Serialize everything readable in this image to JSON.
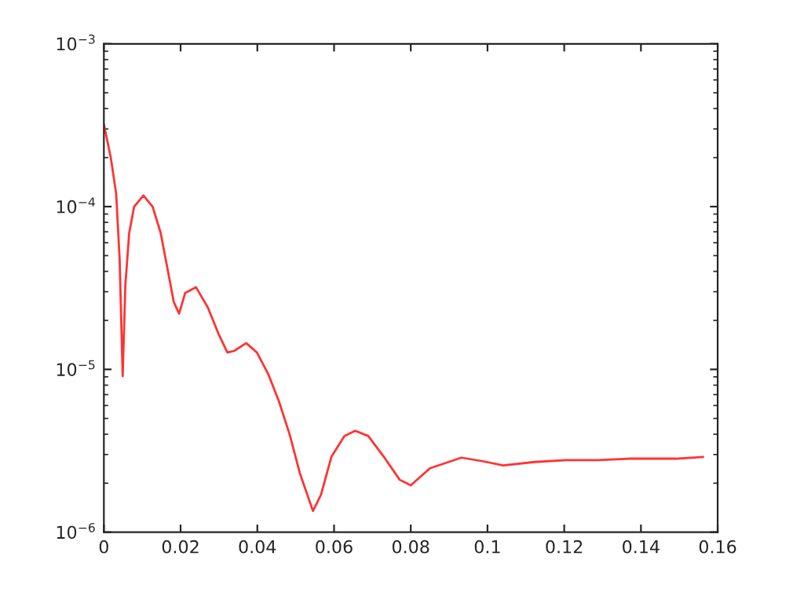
{
  "chart_data": {
    "type": "line",
    "log": "y",
    "grid": false,
    "marker": "none",
    "line_style": "solid",
    "xlim": [
      0,
      0.16
    ],
    "xticks": [
      0,
      0.02,
      0.04,
      0.06,
      0.08,
      0.1,
      0.12,
      0.14,
      0.16
    ],
    "ylim": [
      1e-06,
      0.001
    ],
    "yticks": [
      {
        "value": 1e-06,
        "label": "10$^{−6}$"
      },
      {
        "value": 1e-05,
        "label": "10$^{−5}$"
      },
      {
        "value": 0.0001,
        "label": "10$^{−4}$"
      },
      {
        "value": 0.001,
        "label": "10$^{−3}$"
      }
    ],
    "series": [
      {
        "color": "#ff3333",
        "x": [
          0,
          0.0018,
          0.0032,
          0.0041,
          0.0049,
          0.0056,
          0.0066,
          0.0079,
          0.0103,
          0.0127,
          0.0148,
          0.0168,
          0.0182,
          0.0196,
          0.0212,
          0.024,
          0.0271,
          0.0299,
          0.0322,
          0.034,
          0.0371,
          0.0399,
          0.0429,
          0.0456,
          0.0484,
          0.0511,
          0.0545,
          0.0566,
          0.0593,
          0.0627,
          0.0655,
          0.0689,
          0.073,
          0.0771,
          0.08,
          0.085,
          0.0932,
          0.0987,
          0.1041,
          0.1123,
          0.1205,
          0.1287,
          0.1368,
          0.1491,
          0.1562
        ],
        "values": [
          0.00032,
          0.0002,
          0.00012,
          4.8e-05,
          9.1e-06,
          3.3e-05,
          6.9e-05,
          0.0001,
          0.000117,
          0.0001,
          6.9e-05,
          3.9e-05,
          2.6e-05,
          2.2e-05,
          2.95e-05,
          3.2e-05,
          2.4e-05,
          1.65e-05,
          1.27e-05,
          1.3e-05,
          1.45e-05,
          1.27e-05,
          9.3e-06,
          6.4e-06,
          4e-06,
          2.3e-06,
          1.35e-06,
          1.7e-06,
          2.9e-06,
          3.9e-06,
          4.2e-06,
          3.9e-06,
          2.9e-06,
          2.1e-06,
          1.94e-06,
          2.47e-06,
          2.87e-06,
          2.73e-06,
          2.57e-06,
          2.7e-06,
          2.77e-06,
          2.77e-06,
          2.83e-06,
          2.83e-06,
          2.9e-06
        ]
      }
    ]
  }
}
